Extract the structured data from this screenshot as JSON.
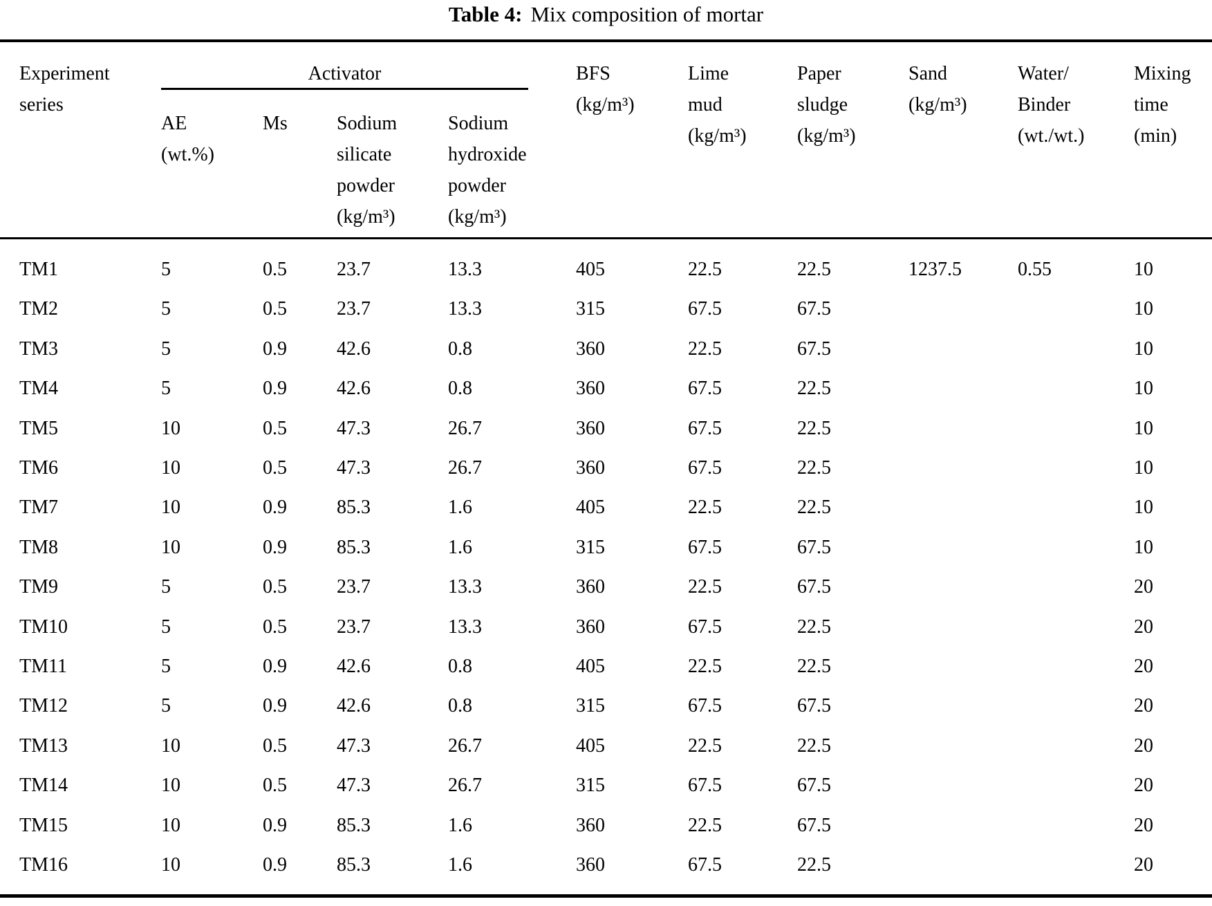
{
  "page": {
    "background": "#ffffff",
    "text_color": "#000000"
  },
  "title": {
    "label": "Table 4:",
    "text": "Mix composition of mortar"
  },
  "table": {
    "group_header": {
      "activator": "Activator"
    },
    "header": {
      "experiment_series": "Experiment\nseries",
      "ae": "AE\n(wt.%)",
      "ms": "Ms",
      "sodium_silicate": "Sodium\nsilicate\npowder\n(kg/m³)",
      "sodium_hydroxide": "Sodium\nhydroxide\npowder\n(kg/m³)",
      "bfs": "BFS\n(kg/m³)",
      "lime_mud": "Lime\nmud\n(kg/m³)",
      "paper_sludge": "Paper\nsludge\n(kg/m³)",
      "sand": "Sand\n(kg/m³)",
      "water_binder": "Water/\nBinder\n(wt./wt.)",
      "mixing_time": "Mixing\ntime\n(min)"
    },
    "column_ids": [
      "experiment-series",
      "ae",
      "ms",
      "sodium-silicate-powder",
      "sodium-hydroxide-powder",
      "bfs",
      "lime-mud",
      "paper-sludge",
      "sand",
      "water-binder",
      "mixing-time"
    ],
    "rows": [
      [
        "TM1",
        "5",
        "0.5",
        "23.7",
        "13.3",
        "405",
        "22.5",
        "22.5",
        "1237.5",
        "0.55",
        "10"
      ],
      [
        "TM2",
        "5",
        "0.5",
        "23.7",
        "13.3",
        "315",
        "67.5",
        "67.5",
        "",
        "",
        "10"
      ],
      [
        "TM3",
        "5",
        "0.9",
        "42.6",
        "0.8",
        "360",
        "22.5",
        "67.5",
        "",
        "",
        "10"
      ],
      [
        "TM4",
        "5",
        "0.9",
        "42.6",
        "0.8",
        "360",
        "67.5",
        "22.5",
        "",
        "",
        "10"
      ],
      [
        "TM5",
        "10",
        "0.5",
        "47.3",
        "26.7",
        "360",
        "67.5",
        "22.5",
        "",
        "",
        "10"
      ],
      [
        "TM6",
        "10",
        "0.5",
        "47.3",
        "26.7",
        "360",
        "67.5",
        "22.5",
        "",
        "",
        "10"
      ],
      [
        "TM7",
        "10",
        "0.9",
        "85.3",
        "1.6",
        "405",
        "22.5",
        "22.5",
        "",
        "",
        "10"
      ],
      [
        "TM8",
        "10",
        "0.9",
        "85.3",
        "1.6",
        "315",
        "67.5",
        "67.5",
        "",
        "",
        "10"
      ],
      [
        "TM9",
        "5",
        "0.5",
        "23.7",
        "13.3",
        "360",
        "22.5",
        "67.5",
        "",
        "",
        "20"
      ],
      [
        "TM10",
        "5",
        "0.5",
        "23.7",
        "13.3",
        "360",
        "67.5",
        "22.5",
        "",
        "",
        "20"
      ],
      [
        "TM11",
        "5",
        "0.9",
        "42.6",
        "0.8",
        "405",
        "22.5",
        "22.5",
        "",
        "",
        "20"
      ],
      [
        "TM12",
        "5",
        "0.9",
        "42.6",
        "0.8",
        "315",
        "67.5",
        "67.5",
        "",
        "",
        "20"
      ],
      [
        "TM13",
        "10",
        "0.5",
        "47.3",
        "26.7",
        "405",
        "22.5",
        "22.5",
        "",
        "",
        "20"
      ],
      [
        "TM14",
        "10",
        "0.5",
        "47.3",
        "26.7",
        "315",
        "67.5",
        "67.5",
        "",
        "",
        "20"
      ],
      [
        "TM15",
        "10",
        "0.9",
        "85.3",
        "1.6",
        "360",
        "22.5",
        "67.5",
        "",
        "",
        "20"
      ],
      [
        "TM16",
        "10",
        "0.9",
        "85.3",
        "1.6",
        "360",
        "67.5",
        "22.5",
        "",
        "",
        "20"
      ]
    ]
  }
}
